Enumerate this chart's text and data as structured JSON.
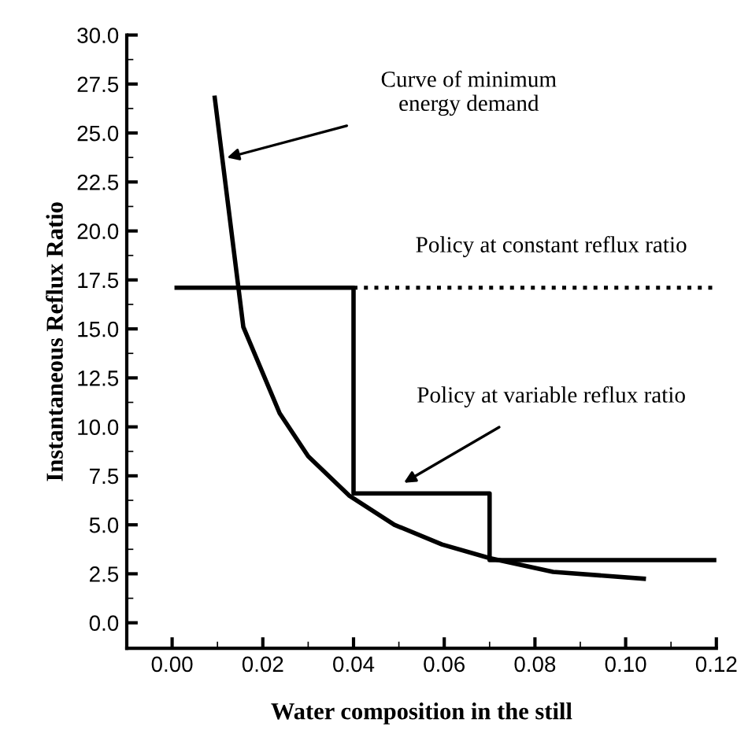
{
  "chart_data": {
    "type": "line",
    "xlabel": "Water composition in the still",
    "ylabel": "Instantaneous Reflux Ratio",
    "xlim": [
      -0.01,
      0.12
    ],
    "ylim": [
      -1.3,
      30
    ],
    "xticks": [
      {
        "value": 0,
        "label": "0.00"
      },
      {
        "value": 0.02,
        "label": "0.02"
      },
      {
        "value": 0.04,
        "label": "0.04"
      },
      {
        "value": 0.06,
        "label": "0.06"
      },
      {
        "value": 0.08,
        "label": "0.08"
      },
      {
        "value": 0.1,
        "label": "0.10"
      },
      {
        "value": 0.12,
        "label": "0.12"
      }
    ],
    "yticks": [
      {
        "value": 0,
        "label": "0.0"
      },
      {
        "value": 2.5,
        "label": "2.5"
      },
      {
        "value": 5,
        "label": "5.0"
      },
      {
        "value": 7.5,
        "label": "7.5"
      },
      {
        "value": 10,
        "label": "10.0"
      },
      {
        "value": 12.5,
        "label": "12.5"
      },
      {
        "value": 15,
        "label": "15.0"
      },
      {
        "value": 17.5,
        "label": "17.5"
      },
      {
        "value": 20,
        "label": "20.0"
      },
      {
        "value": 22.5,
        "label": "22.5"
      },
      {
        "value": 25,
        "label": "25.0"
      },
      {
        "value": 27.5,
        "label": "27.5"
      },
      {
        "value": 30,
        "label": "30.0"
      }
    ],
    "grid": false,
    "series": [
      {
        "color": "#000000",
        "line_style": "solid",
        "x": [
          0.0094,
          0.0157,
          0.0237,
          0.03,
          0.039,
          0.049,
          0.0595,
          0.07,
          0.084,
          0.104
        ],
        "values": [
          26.8,
          15.1,
          10.7,
          8.5,
          6.5,
          5.0,
          4.0,
          3.3,
          2.6,
          2.25
        ]
      },
      {
        "color": "#000000",
        "line_style": "solid",
        "x": [
          0.001,
          0.04,
          0.04,
          0.07,
          0.07,
          0.12
        ],
        "values": [
          17.1,
          17.1,
          6.6,
          6.6,
          3.2,
          3.2
        ]
      },
      {
        "color": "#000000",
        "line_style": "dotted",
        "x": [
          0.04,
          0.12
        ],
        "values": [
          17.1,
          17.1
        ]
      }
    ],
    "annotations": [
      "Curve of minimum\nenergy demand",
      "Policy at constant reflux ratio",
      "Policy at variable reflux ratio"
    ]
  }
}
